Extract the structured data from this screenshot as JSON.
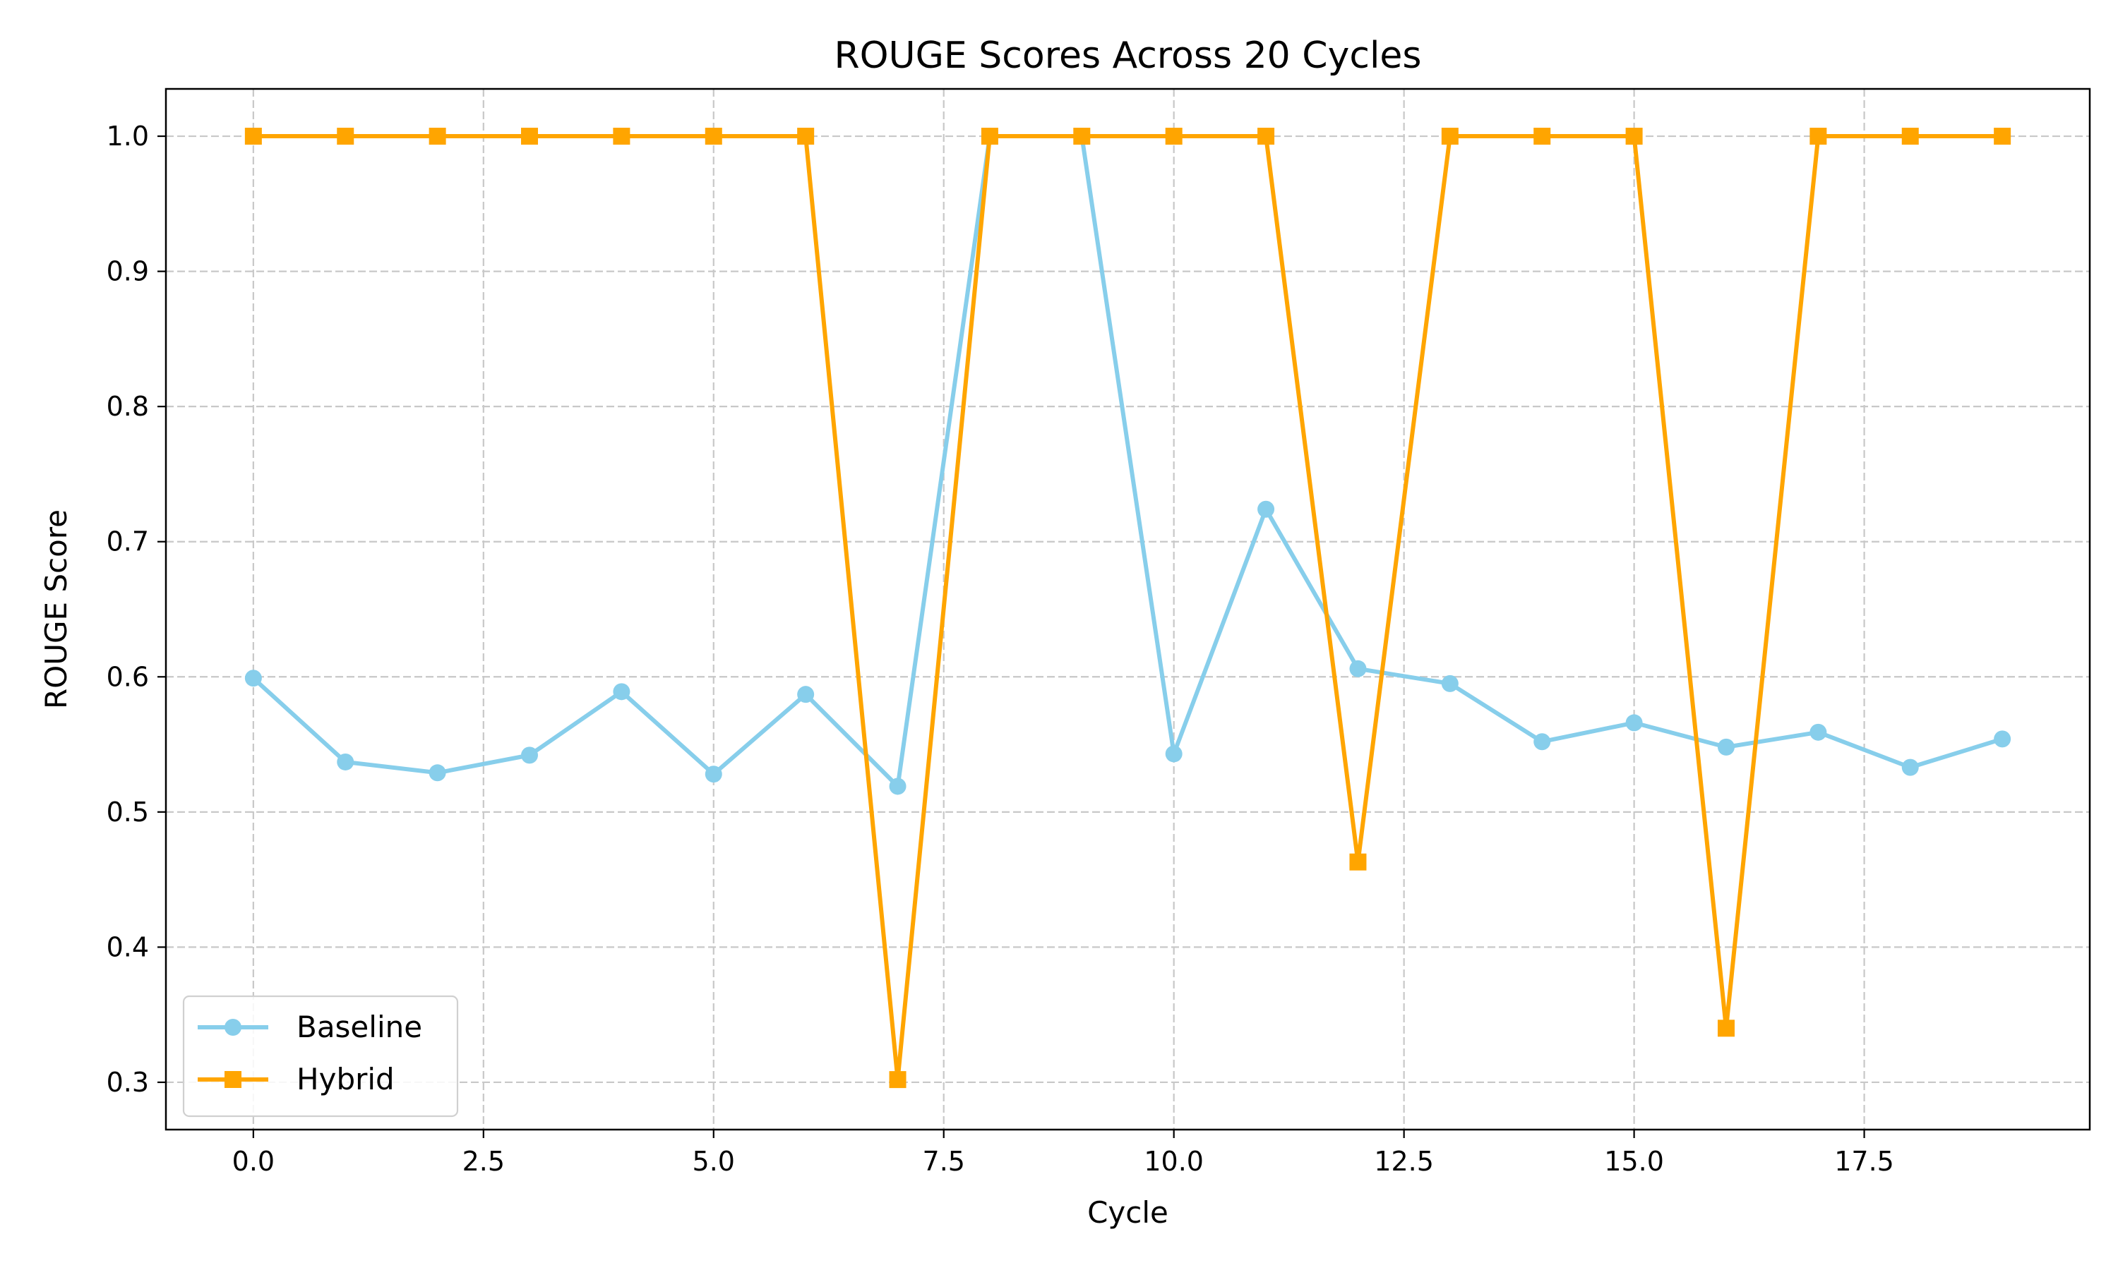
{
  "chart_data": {
    "type": "line",
    "title": "ROUGE Scores Across 20 Cycles",
    "xlabel": "Cycle",
    "ylabel": "ROUGE Score",
    "x": [
      0,
      1,
      2,
      3,
      4,
      5,
      6,
      7,
      8,
      9,
      10,
      11,
      12,
      13,
      14,
      15,
      16,
      17,
      18,
      19
    ],
    "xlim": [
      -0.95,
      19.95
    ],
    "ylim": [
      0.265,
      1.035
    ],
    "xticks": [
      0.0,
      2.5,
      5.0,
      7.5,
      10.0,
      12.5,
      15.0,
      17.5
    ],
    "xtick_labels": [
      "0.0",
      "2.5",
      "5.0",
      "7.5",
      "10.0",
      "12.5",
      "15.0",
      "17.5"
    ],
    "yticks": [
      0.3,
      0.4,
      0.5,
      0.6,
      0.7,
      0.8,
      0.9,
      1.0
    ],
    "ytick_labels": [
      "0.3",
      "0.4",
      "0.5",
      "0.6",
      "0.7",
      "0.8",
      "0.9",
      "1.0"
    ],
    "grid": true,
    "legend_position": "bottom-left",
    "series": [
      {
        "name": "Baseline",
        "color": "#87ceeb",
        "marker": "circle",
        "values": [
          0.599,
          0.537,
          0.529,
          0.542,
          0.589,
          0.528,
          0.587,
          0.519,
          1.0,
          1.0,
          0.543,
          0.724,
          0.606,
          0.595,
          0.552,
          0.566,
          0.548,
          0.559,
          0.533,
          0.554
        ]
      },
      {
        "name": "Hybrid",
        "color": "#ffa500",
        "marker": "square",
        "values": [
          1.0,
          1.0,
          1.0,
          1.0,
          1.0,
          1.0,
          1.0,
          0.302,
          1.0,
          1.0,
          1.0,
          1.0,
          0.463,
          1.0,
          1.0,
          1.0,
          0.34,
          1.0,
          1.0,
          1.0
        ]
      }
    ]
  }
}
